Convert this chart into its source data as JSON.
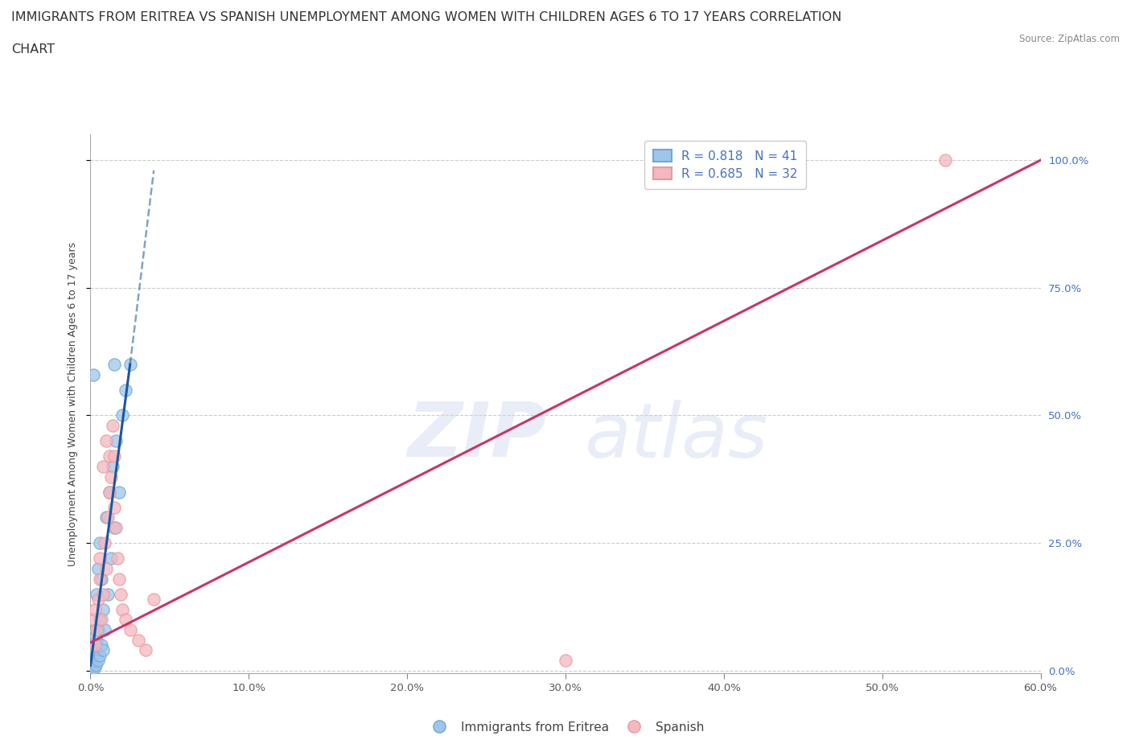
{
  "title_line1": "IMMIGRANTS FROM ERITREA VS SPANISH UNEMPLOYMENT AMONG WOMEN WITH CHILDREN AGES 6 TO 17 YEARS CORRELATION",
  "title_line2": "CHART",
  "source": "Source: ZipAtlas.com",
  "ylabel": "Unemployment Among Women with Children Ages 6 to 17 years",
  "xlim": [
    0.0,
    0.6
  ],
  "ylim": [
    -0.005,
    1.05
  ],
  "xticks": [
    0.0,
    0.1,
    0.2,
    0.3,
    0.4,
    0.5,
    0.6
  ],
  "xticklabels": [
    "0.0%",
    "10.0%",
    "20.0%",
    "30.0%",
    "40.0%",
    "50.0%",
    "60.0%"
  ],
  "yticks": [
    0.0,
    0.25,
    0.5,
    0.75,
    1.0
  ],
  "yticklabels": [
    "0.0%",
    "25.0%",
    "50.0%",
    "75.0%",
    "100.0%"
  ],
  "blue_R": 0.818,
  "blue_N": 41,
  "pink_R": 0.685,
  "pink_N": 32,
  "blue_color": "#9fc5e8",
  "pink_color": "#f4b8c1",
  "blue_edge_color": "#6fa8dc",
  "pink_edge_color": "#ea9999",
  "blue_line_color": "#1a56a0",
  "pink_line_color": "#cc3366",
  "blue_scatter": [
    [
      0.0005,
      0.005
    ],
    [
      0.0008,
      0.008
    ],
    [
      0.001,
      0.01
    ],
    [
      0.001,
      0.02
    ],
    [
      0.0012,
      0.005
    ],
    [
      0.0015,
      0.015
    ],
    [
      0.002,
      0.01
    ],
    [
      0.002,
      0.02
    ],
    [
      0.002,
      0.03
    ],
    [
      0.0025,
      0.005
    ],
    [
      0.003,
      0.02
    ],
    [
      0.003,
      0.04
    ],
    [
      0.003,
      0.08
    ],
    [
      0.0035,
      0.01
    ],
    [
      0.004,
      0.03
    ],
    [
      0.004,
      0.06
    ],
    [
      0.004,
      0.15
    ],
    [
      0.005,
      0.02
    ],
    [
      0.005,
      0.08
    ],
    [
      0.005,
      0.2
    ],
    [
      0.006,
      0.03
    ],
    [
      0.006,
      0.1
    ],
    [
      0.006,
      0.25
    ],
    [
      0.007,
      0.05
    ],
    [
      0.007,
      0.18
    ],
    [
      0.008,
      0.04
    ],
    [
      0.008,
      0.12
    ],
    [
      0.009,
      0.08
    ],
    [
      0.01,
      0.3
    ],
    [
      0.011,
      0.15
    ],
    [
      0.012,
      0.35
    ],
    [
      0.013,
      0.22
    ],
    [
      0.014,
      0.4
    ],
    [
      0.015,
      0.28
    ],
    [
      0.016,
      0.45
    ],
    [
      0.018,
      0.35
    ],
    [
      0.02,
      0.5
    ],
    [
      0.022,
      0.55
    ],
    [
      0.025,
      0.6
    ],
    [
      0.002,
      0.58
    ],
    [
      0.015,
      0.6
    ]
  ],
  "pink_scatter": [
    [
      0.002,
      0.1
    ],
    [
      0.003,
      0.05
    ],
    [
      0.003,
      0.12
    ],
    [
      0.004,
      0.08
    ],
    [
      0.005,
      0.14
    ],
    [
      0.006,
      0.18
    ],
    [
      0.006,
      0.22
    ],
    [
      0.007,
      0.1
    ],
    [
      0.008,
      0.15
    ],
    [
      0.008,
      0.4
    ],
    [
      0.009,
      0.25
    ],
    [
      0.01,
      0.45
    ],
    [
      0.01,
      0.2
    ],
    [
      0.011,
      0.3
    ],
    [
      0.012,
      0.35
    ],
    [
      0.012,
      0.42
    ],
    [
      0.013,
      0.38
    ],
    [
      0.014,
      0.48
    ],
    [
      0.015,
      0.42
    ],
    [
      0.015,
      0.32
    ],
    [
      0.016,
      0.28
    ],
    [
      0.017,
      0.22
    ],
    [
      0.018,
      0.18
    ],
    [
      0.019,
      0.15
    ],
    [
      0.02,
      0.12
    ],
    [
      0.022,
      0.1
    ],
    [
      0.025,
      0.08
    ],
    [
      0.03,
      0.06
    ],
    [
      0.035,
      0.04
    ],
    [
      0.04,
      0.14
    ],
    [
      0.3,
      0.02
    ],
    [
      0.54,
      1.0
    ]
  ],
  "blue_trendline": [
    [
      0.0,
      0.01
    ],
    [
      0.025,
      0.6
    ]
  ],
  "blue_dashline": [
    [
      0.025,
      0.6
    ],
    [
      0.04,
      0.98
    ]
  ],
  "pink_trendline": [
    [
      0.0,
      0.055
    ],
    [
      0.6,
      1.0
    ]
  ],
  "watermark_zip": "ZIP",
  "watermark_atlas": "atlas",
  "title_fontsize": 11.5,
  "axis_label_fontsize": 9,
  "tick_fontsize": 9.5,
  "legend_fontsize": 11,
  "ytick_color": "#4472c4",
  "xtick_color": "#595959",
  "grid_color": "#cccccc"
}
